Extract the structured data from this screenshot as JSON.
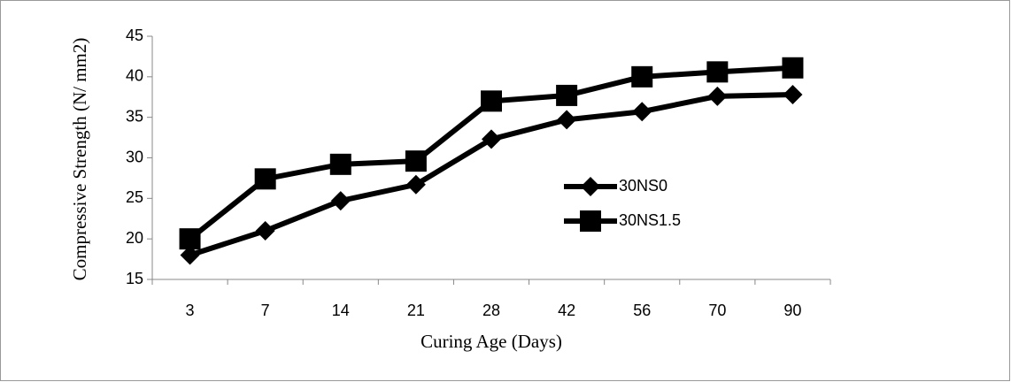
{
  "chart_data": {
    "type": "line",
    "x_label": "Curing Age (Days)",
    "y_label": "Compressive  Strength (N/ mm2)",
    "categories": [
      "3",
      "7",
      "14",
      "21",
      "28",
      "42",
      "56",
      "70",
      "90"
    ],
    "series": [
      {
        "name": "30NS0",
        "color": "#000000",
        "marker": "diamond",
        "values": [
          18.0,
          21.0,
          24.7,
          26.7,
          32.3,
          34.7,
          35.7,
          37.6,
          37.8
        ]
      },
      {
        "name": "30NS1.5",
        "color": "#000000",
        "marker": "square",
        "values": [
          20.0,
          27.4,
          29.2,
          29.6,
          37.0,
          37.7,
          40.0,
          40.6,
          41.1
        ]
      }
    ],
    "ylim": [
      15,
      45
    ],
    "yticks": [
      15,
      20,
      25,
      30,
      35,
      40,
      45
    ],
    "grid": false,
    "legend": "right"
  }
}
